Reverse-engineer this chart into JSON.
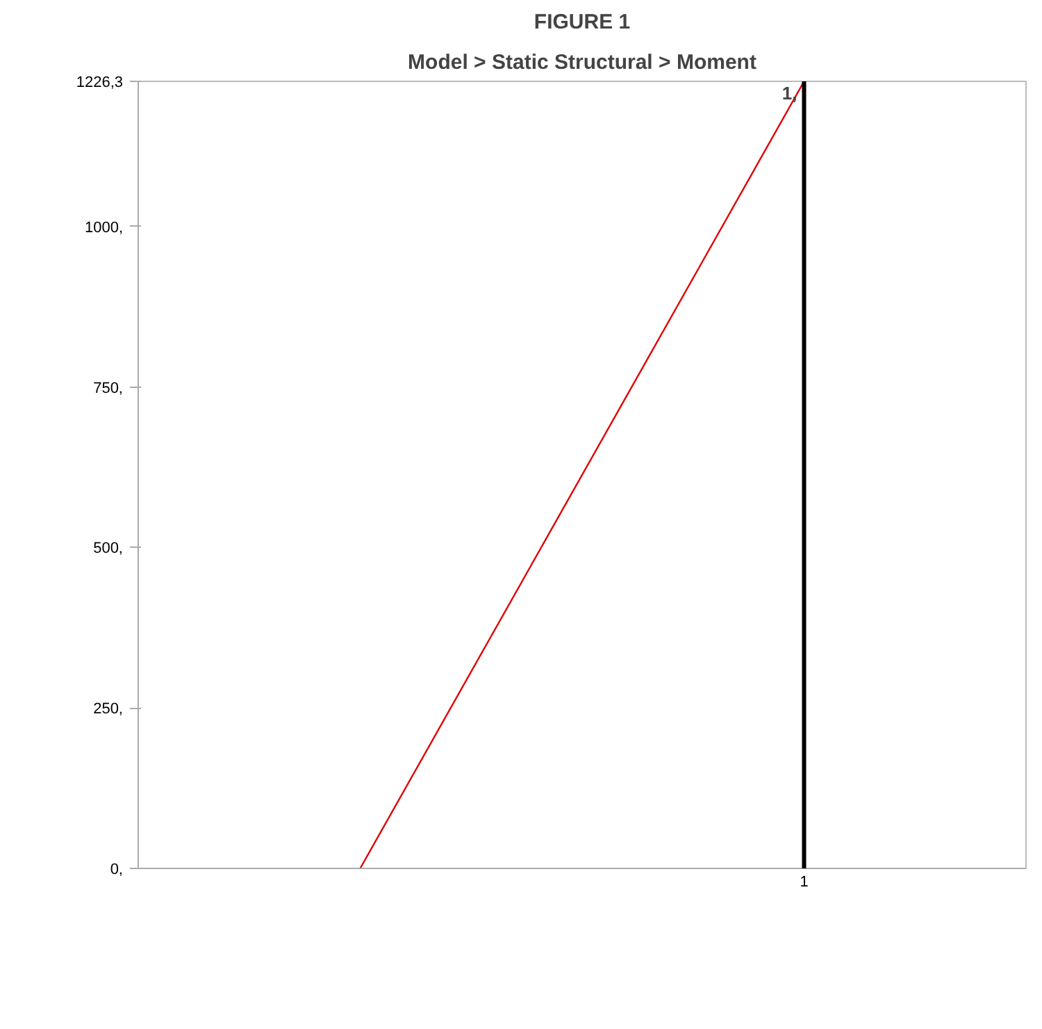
{
  "chart_data": {
    "type": "line",
    "title": "FIGURE 1",
    "subtitle": "Model > Static Structural > Moment",
    "categories": [
      null,
      "1"
    ],
    "series": [
      {
        "color": "#e00000",
        "values": [
          0,
          1226.3
        ]
      }
    ],
    "ylim": [
      0,
      1226.3
    ],
    "yticks": [
      {
        "value": 0,
        "label": "0,"
      },
      {
        "value": 250,
        "label": "250,"
      },
      {
        "value": 500,
        "label": "500,"
      },
      {
        "value": 750,
        "label": "750,"
      },
      {
        "value": 1000,
        "label": "1000,"
      },
      {
        "value": 1226.3,
        "label": "1226,3"
      }
    ],
    "ref_lines": [
      {
        "axis": "x",
        "value": "1",
        "label": "1,",
        "color": "#000000"
      }
    ],
    "grid": false,
    "line_style": "solid"
  }
}
